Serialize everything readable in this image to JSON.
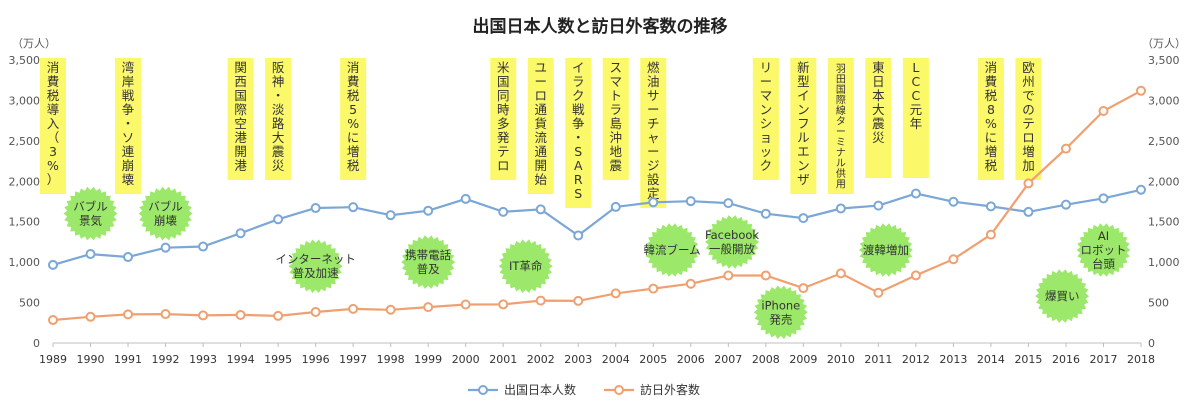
{
  "chart_data": {
    "type": "line",
    "title": "出国日本人数と訪日外客数の推移",
    "y_unit_left": "（万人）",
    "y_unit_right": "（万人）",
    "ylim": [
      0,
      3500
    ],
    "yticks": [
      "0",
      "500",
      "1,000",
      "1,500",
      "2,000",
      "2,500",
      "3,000",
      "3,500"
    ],
    "grid": false,
    "legend_position": "bottom",
    "categories": [
      "1989",
      "1990",
      "1991",
      "1992",
      "1993",
      "1994",
      "1995",
      "1996",
      "1997",
      "1998",
      "1999",
      "2000",
      "2001",
      "2002",
      "2003",
      "2004",
      "2005",
      "2006",
      "2007",
      "2008",
      "2009",
      "2010",
      "2011",
      "2012",
      "2013",
      "2014",
      "2015",
      "2016",
      "2017",
      "2018"
    ],
    "series": [
      {
        "name": "出国日本人数",
        "color": "#7ba7d6",
        "values": [
          966,
          1100,
          1063,
          1179,
          1193,
          1358,
          1530,
          1669,
          1680,
          1581,
          1636,
          1782,
          1622,
          1652,
          1330,
          1683,
          1740,
          1754,
          1730,
          1599,
          1545,
          1664,
          1699,
          1849,
          1747,
          1690,
          1621,
          1711,
          1789,
          1895
        ]
      },
      {
        "name": "訪日外客数",
        "color": "#f0a070",
        "values": [
          284,
          324,
          354,
          358,
          341,
          347,
          335,
          384,
          422,
          411,
          444,
          476,
          477,
          524,
          521,
          614,
          673,
          733,
          835,
          835,
          679,
          861,
          622,
          836,
          1036,
          1341,
          1974,
          2404,
          2869,
          3119
        ]
      }
    ],
    "events": [
      {
        "idx": 0,
        "text": "消費税導入（3%）"
      },
      {
        "idx": 2,
        "text": "湾岸戦争・ソ連崩壊"
      },
      {
        "idx": 5,
        "text": "関西国際空港開港"
      },
      {
        "idx": 6,
        "text": "阪神・淡路大震災"
      },
      {
        "idx": 8,
        "text": "消費税5%に増税"
      },
      {
        "idx": 12,
        "text": "米国同時多発テロ"
      },
      {
        "idx": 13,
        "text": "ユーロ通貨流通開始"
      },
      {
        "idx": 14,
        "text": "イラク戦争・SARS"
      },
      {
        "idx": 15,
        "text": "スマトラ島沖地震"
      },
      {
        "idx": 16,
        "text": "燃油サーチャージ設定"
      },
      {
        "idx": 19,
        "text": "リーマンショック"
      },
      {
        "idx": 20,
        "text": "新型インフルエンザ"
      },
      {
        "idx": 21,
        "text": "羽田国際線ターミナル供用"
      },
      {
        "idx": 22,
        "text": "東日本大震災"
      },
      {
        "idx": 23,
        "text": "LCC元年"
      },
      {
        "idx": 25,
        "text": "消費税8%に増税"
      },
      {
        "idx": 26,
        "text": "欧州でのテロ増加"
      }
    ],
    "annotations": [
      {
        "idx": 1,
        "y": 1600,
        "lines": [
          "バブル",
          "景気"
        ]
      },
      {
        "idx": 3,
        "y": 1600,
        "lines": [
          "バブル",
          "崩壊"
        ]
      },
      {
        "idx": 7,
        "y": 950,
        "lines": [
          "インターネット",
          "普及加速"
        ]
      },
      {
        "idx": 10,
        "y": 1000,
        "lines": [
          "携帯電話",
          "普及"
        ]
      },
      {
        "idx": 12.6,
        "y": 950,
        "lines": [
          "IT革命"
        ]
      },
      {
        "idx": 16.5,
        "y": 1150,
        "lines": [
          "韓流ブーム"
        ]
      },
      {
        "idx": 18.1,
        "y": 1250,
        "lines": [
          "Facebook",
          "一般開放"
        ]
      },
      {
        "idx": 19.4,
        "y": 380,
        "lines": [
          "iPhone",
          "発売"
        ]
      },
      {
        "idx": 22.2,
        "y": 1150,
        "lines": [
          "渡韓増加"
        ]
      },
      {
        "idx": 26.9,
        "y": 580,
        "lines": [
          "爆買い"
        ]
      },
      {
        "idx": 28.0,
        "y": 1150,
        "lines": [
          "AI",
          "ロボット",
          "台頭"
        ]
      }
    ]
  }
}
